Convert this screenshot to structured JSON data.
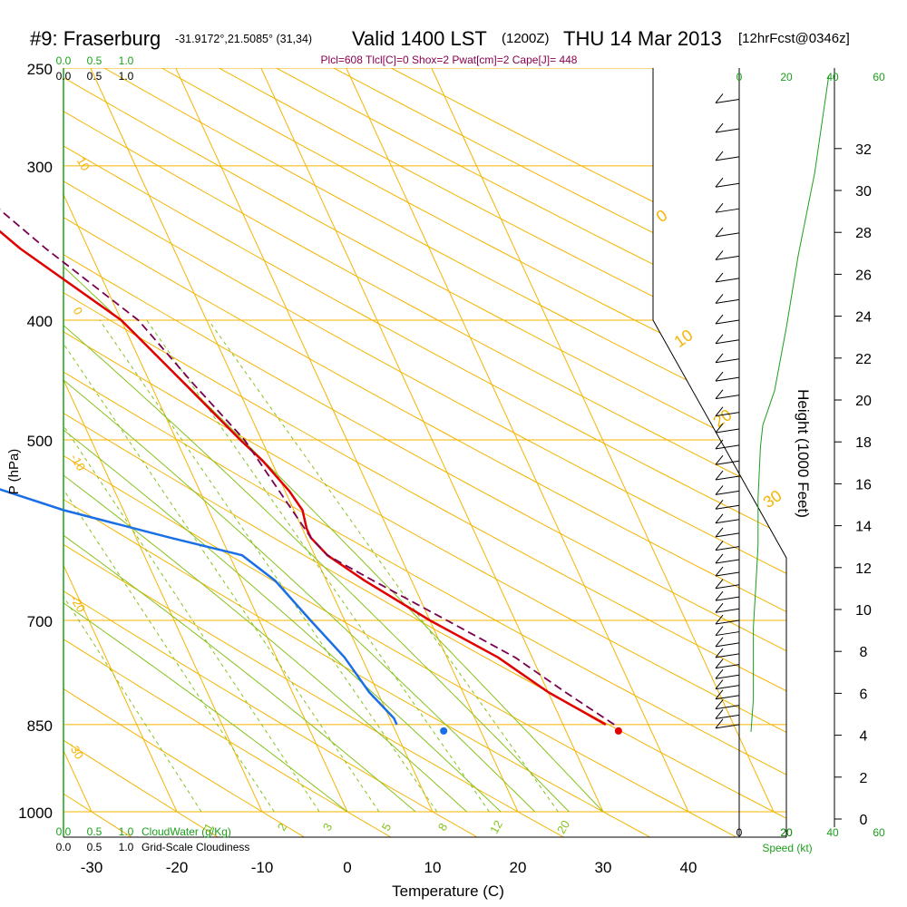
{
  "header": {
    "station": "#9: Fraserburg",
    "coords": "-31.9172°,21.5085° (31,34)",
    "valid": "Valid 1400 LST",
    "zulu": "(1200Z)",
    "date": "THU 14 Mar 2013",
    "forecast": "[12hrFcst@0346z]"
  },
  "parcel_info": "Plcl=608 Tlcl[C]=0 Shox=2 Pwat[cm]=2 Cape[J]= 448",
  "colors": {
    "isotherm": "#f5b400",
    "mixing_ratio": "#86c21d",
    "temperature": "#e00000",
    "dewpoint": "#1a6ee6",
    "parcel": "#7a0050",
    "green": "#1aa01a"
  },
  "chart_data": {
    "type": "line",
    "title": "",
    "xlabel": "Temperature (C)",
    "ylabel": "P (hPa)",
    "y2label": "Height (1000 Feet)",
    "y_scale": "log",
    "xlim": [
      -35,
      45
    ],
    "ylim": [
      1000,
      250
    ],
    "x_ticks": [
      "-30",
      "-20",
      "-10",
      "0",
      "10",
      "20",
      "30",
      "40"
    ],
    "pressure_ticks": [
      "250",
      "300",
      "400",
      "500",
      "700",
      "850",
      "1000"
    ],
    "height_ticks": [
      "0",
      "2",
      "4",
      "6",
      "8",
      "10",
      "12",
      "14",
      "16",
      "18",
      "20",
      "22",
      "24",
      "26",
      "28",
      "30",
      "32"
    ],
    "skewed_isotherm_labels": [
      "10",
      "0",
      "-10",
      "-20",
      "-30"
    ],
    "right_isotherm_labels": [
      "0",
      "10",
      "20",
      "30"
    ],
    "mixing_ratio_labels": [
      "1",
      "2",
      "3",
      "5",
      "8",
      "12",
      "20"
    ],
    "series": [
      {
        "key": "temperature",
        "pressure": [
          850,
          800,
          750,
          700,
          650,
          620,
          600,
          590,
          570,
          550,
          520,
          500,
          450,
          400,
          350,
          300,
          250
        ],
        "temp": [
          35,
          30,
          26,
          20,
          14.5,
          11.5,
          10.5,
          10.5,
          11,
          10.5,
          9,
          7.5,
          4,
          0,
          -8,
          -15,
          -21
        ]
      },
      {
        "key": "dewpoint",
        "pressure": [
          850,
          840,
          800,
          750,
          700,
          650,
          620,
          600,
          570,
          520,
          480,
          450,
          420,
          400,
          350,
          320,
          300,
          250
        ],
        "temp": [
          10.5,
          10.5,
          9,
          8,
          6,
          4,
          1.5,
          -6,
          -17,
          -32,
          -42,
          -40,
          -40,
          -38,
          -32,
          -27,
          -24,
          -19
        ]
      },
      {
        "key": "parcel",
        "pressure": [
          850,
          800,
          750,
          700,
          650,
          620,
          600,
          500,
          450,
          400,
          350,
          300,
          250
        ],
        "temp": [
          36,
          32,
          28,
          22,
          15.5,
          11.5,
          10.5,
          8,
          5,
          2,
          -5,
          -12,
          -20
        ]
      }
    ],
    "surface_points": [
      {
        "key": "temperature",
        "pressure": 850,
        "temp": 36.5
      },
      {
        "key": "dewpoint",
        "pressure": 850,
        "temp": 16
      }
    ],
    "cloud_axis": {
      "top_green": [
        "0.0",
        "0.5",
        "1.0"
      ],
      "top_black": [
        "0.0",
        "0.5",
        "1.0"
      ],
      "bottom_green": [
        "0.0",
        "0.5",
        "1.0"
      ],
      "bottom_black": [
        "0.0",
        "0.5",
        "1.0"
      ],
      "cloudwater_label": "CloudWater (g/Kg)",
      "cloudiness_label": "Grid-Scale Cloudiness"
    },
    "wind_speed": {
      "label": "Speed (kt)",
      "ticks_black": [
        "0",
        "20"
      ],
      "ticks_green": [
        "20",
        "40",
        "60"
      ],
      "pressure": [
        850,
        800,
        750,
        700,
        650,
        600,
        550,
        500,
        480,
        450,
        400,
        350,
        300,
        250
      ],
      "speed": [
        5,
        6,
        6,
        6,
        7,
        8,
        8,
        9,
        10,
        15,
        20,
        25,
        32,
        38
      ]
    }
  }
}
